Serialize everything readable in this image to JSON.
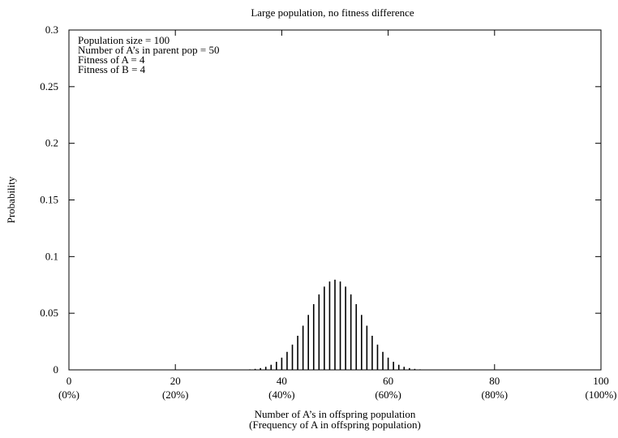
{
  "chart_data": {
    "type": "bar",
    "title": "Large population, no fitness difference",
    "xlabel": "Number of A’s in offspring population",
    "xlabel2": "(Frequency of A in offspring population)",
    "ylabel": "Probability",
    "xlim": [
      0,
      100
    ],
    "ylim": [
      0,
      0.3
    ],
    "x_ticks": [
      {
        "value": 0,
        "label": "0",
        "sublabel": "(0%)"
      },
      {
        "value": 20,
        "label": "20",
        "sublabel": "(20%)"
      },
      {
        "value": 40,
        "label": "40",
        "sublabel": "(40%)"
      },
      {
        "value": 60,
        "label": "60",
        "sublabel": "(60%)"
      },
      {
        "value": 80,
        "label": "80",
        "sublabel": "(80%)"
      },
      {
        "value": 100,
        "label": "100",
        "sublabel": "(100%)"
      }
    ],
    "y_ticks": [
      {
        "value": 0,
        "label": "0"
      },
      {
        "value": 0.05,
        "label": "0.05"
      },
      {
        "value": 0.1,
        "label": "0.1"
      },
      {
        "value": 0.15,
        "label": "0.15"
      },
      {
        "value": 0.2,
        "label": "0.2"
      },
      {
        "value": 0.25,
        "label": "0.25"
      },
      {
        "value": 0.3,
        "label": "0.3"
      }
    ],
    "annotations": [
      "Population size = 100",
      "Number of A’s in parent pop = 50",
      "Fitness of A = 4",
      "Fitness of B = 4"
    ],
    "annotation_position": "top-left",
    "grid": false,
    "bar_color": "#000000",
    "x": [
      30,
      31,
      32,
      33,
      34,
      35,
      36,
      37,
      38,
      39,
      40,
      41,
      42,
      43,
      44,
      45,
      46,
      47,
      48,
      49,
      50,
      51,
      52,
      53,
      54,
      55,
      56,
      57,
      58,
      59,
      60,
      61,
      62,
      63,
      64,
      65,
      66,
      67,
      68,
      69,
      70
    ],
    "values": [
      2e-05,
      5e-05,
      0.00011,
      0.00023,
      0.00046,
      0.00086,
      0.00156,
      0.0027,
      0.0045,
      0.0071,
      0.0108,
      0.0159,
      0.0223,
      0.0301,
      0.039,
      0.0485,
      0.058,
      0.0666,
      0.0735,
      0.078,
      0.0796,
      0.078,
      0.0735,
      0.0666,
      0.058,
      0.0485,
      0.039,
      0.0301,
      0.0223,
      0.0159,
      0.0108,
      0.0071,
      0.0045,
      0.0027,
      0.00156,
      0.00086,
      0.00046,
      0.00023,
      0.00011,
      5e-05,
      2e-05
    ]
  }
}
